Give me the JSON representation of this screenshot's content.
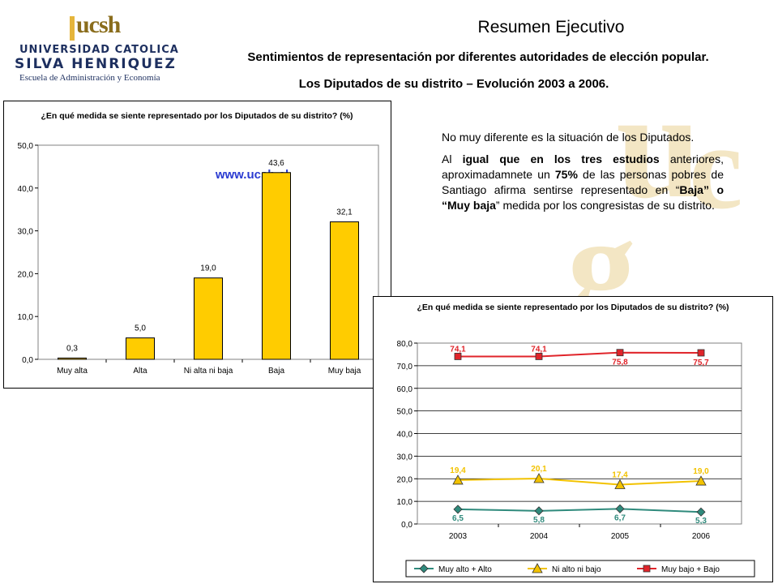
{
  "header": {
    "logo": {
      "ucsh": "ucsh",
      "line1": "UNIVERSIDAD CATOLICA",
      "line2": "SILVA HENRIQUEZ",
      "line3": "Escuela de Administración y Economía"
    },
    "title": "Resumen Ejecutivo",
    "subtitle1": "Sentimientos de representación por diferentes autoridades de elección popular.",
    "subtitle2": "Los Diputados de su distrito – Evolución 2003 a 2006."
  },
  "text": {
    "p1": "No muy diferente es la situación de los Diputados.",
    "p2": {
      "t1": "Al ",
      "b1": "igual que en los tres estudios",
      "t2": " anteriores, aproximadamnete un ",
      "b2": "75%",
      "t3": " de las personas pobres de Santiago afirma sentirse representado en “",
      "b3": "Baja” o “Muy baja",
      "t4": "” medida por los congresistas de su distrito."
    }
  },
  "chart_data": [
    {
      "type": "bar",
      "title": "¿En qué medida se siente representado por los Diputados de su distrito? (%)",
      "watermark": "www.ucsh.cl",
      "categories": [
        "Muy alta",
        "Alta",
        "Ni alta ni baja",
        "Baja",
        "Muy baja"
      ],
      "values": [
        0.3,
        5.0,
        19.0,
        43.6,
        32.1
      ],
      "value_labels": [
        "0,3",
        "5,0",
        "19,0",
        "43,6",
        "32,1"
      ],
      "yticks": [
        "0,0",
        "10,0",
        "20,0",
        "30,0",
        "40,0",
        "50,0"
      ],
      "ylim": [
        0,
        50
      ],
      "bar_color": "#ffcc00",
      "grid": false
    },
    {
      "type": "line",
      "title": "¿En qué medida se siente representado por los Diputados de su distrito? (%)",
      "x": [
        "2003",
        "2004",
        "2005",
        "2006"
      ],
      "yticks": [
        "0,0",
        "10,0",
        "20,0",
        "30,0",
        "40,0",
        "50,0",
        "60,0",
        "70,0",
        "80,0"
      ],
      "ylim": [
        0,
        80
      ],
      "grid": true,
      "legend": "bottom",
      "series": [
        {
          "name": "Muy alto + Alto",
          "values": [
            6.5,
            5.8,
            6.7,
            5.3
          ],
          "labels": [
            "6,5",
            "5,8",
            "6,7",
            "5,3"
          ],
          "color": "#2f8a7c",
          "marker": "diamond"
        },
        {
          "name": "Ni alto ni bajo",
          "values": [
            19.4,
            20.1,
            17.4,
            19.0
          ],
          "labels": [
            "19,4",
            "20,1",
            "17,4",
            "19,0"
          ],
          "color": "#f2c200",
          "marker": "triangle"
        },
        {
          "name": "Muy bajo + Bajo",
          "values": [
            74.1,
            74.1,
            75.8,
            75.7
          ],
          "labels": [
            "74,1",
            "74,1",
            "75,8",
            "75,7"
          ],
          "color": "#e0242a",
          "marker": "square"
        }
      ]
    }
  ]
}
